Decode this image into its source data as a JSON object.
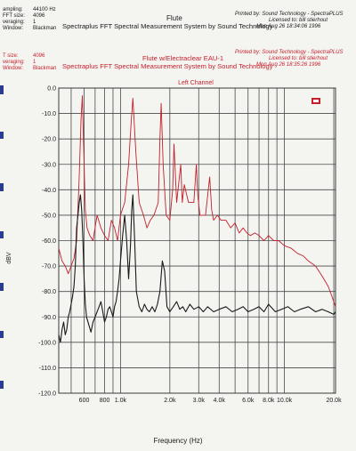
{
  "header_black": {
    "sampling_label": "ampling:",
    "sampling_value": "44100 Hz",
    "fft_label": "FFT size:",
    "fft_value": "4096",
    "averaging_label": "veraging:",
    "averaging_value": "1",
    "window_label": "Window:",
    "window_value": "Blackman",
    "subtitle": "Flute",
    "title": "Spectraplus FFT Spectral Measurement System by Sound Technology",
    "printed": "Printed by: Sound Technology - SpectraPLUS",
    "licensed": "Licensed to: bill stierhout",
    "date": "Mon Aug 26 18:34:06 1996"
  },
  "header_red": {
    "fft_label": "T size:",
    "fft_value": "4096",
    "averaging_label": "veraging:",
    "averaging_value": "1",
    "window_label": "Window:",
    "window_value": "Blackman",
    "subtitle": "Flute w/Electraclear EAU-1",
    "title": "Spectraplus FFT Spectral Measurement System by Sound Technology",
    "printed": "Printed by: Sound Technology - SpectraPLUS",
    "licensed": "Licensed to: bill stierhout",
    "date": "Mon Aug 26 18:35:26 1996"
  },
  "chart_data": {
    "type": "line",
    "title": "Left Channel",
    "xlabel": "Frequency (Hz)",
    "ylabel": "dBV",
    "xscale": "log",
    "xlim": [
      420,
      20500
    ],
    "ylim": [
      -120,
      0
    ],
    "grid": true,
    "y_ticks": [
      0,
      -10,
      -20,
      -30,
      -40,
      -50,
      -60,
      -70,
      -80,
      -90,
      -100,
      -110,
      -120
    ],
    "y_tick_labels": [
      "0.0",
      "-10.0",
      "-20.0",
      "-30.0",
      "-40.0",
      "-50.0",
      "-60.0",
      "-70.0",
      "-80.0",
      "-90.0",
      "-100.0",
      "-110.0",
      "-120.0"
    ],
    "x_ticks": [
      600,
      800,
      1000,
      2000,
      3000,
      4000,
      6000,
      8000,
      10000,
      20000
    ],
    "x_tick_labels": [
      "600",
      "800",
      "1.0k",
      "2.0k",
      "3.0k",
      "4.0k",
      "6.0k",
      "8.0k",
      "10.0k",
      "20.0k"
    ],
    "series": [
      {
        "color": "#c41f2a",
        "x": [
          420,
          440,
          460,
          480,
          500,
          520,
          540,
          560,
          575,
          585,
          595,
          610,
          625,
          650,
          680,
          720,
          760,
          800,
          840,
          880,
          920,
          960,
          1000,
          1060,
          1120,
          1160,
          1190,
          1240,
          1300,
          1380,
          1450,
          1520,
          1600,
          1700,
          1740,
          1770,
          1820,
          1900,
          2000,
          2080,
          2120,
          2200,
          2330,
          2380,
          2450,
          2600,
          2800,
          2900,
          2960,
          3050,
          3300,
          3500,
          3600,
          3700,
          3900,
          4100,
          4400,
          4700,
          5000,
          5300,
          5600,
          5900,
          6200,
          6600,
          7000,
          7500,
          8000,
          8600,
          9200,
          10000,
          11000,
          12000,
          13000,
          14000,
          15500,
          17000,
          18500,
          19500,
          20500
        ],
        "y": [
          -63,
          -68,
          -70,
          -73,
          -70,
          -67,
          -60,
          -35,
          -12,
          -3,
          -22,
          -48,
          -55,
          -58,
          -60,
          -50,
          -55,
          -58,
          -60,
          -52,
          -55,
          -60,
          -50,
          -45,
          -30,
          -14,
          -4,
          -25,
          -45,
          -50,
          -55,
          -52,
          -50,
          -45,
          -20,
          -6,
          -30,
          -50,
          -52,
          -40,
          -22,
          -45,
          -30,
          -45,
          -38,
          -45,
          -45,
          -30,
          -42,
          -50,
          -50,
          -35,
          -48,
          -52,
          -50,
          -52,
          -52,
          -55,
          -53,
          -57,
          -55,
          -57,
          -58,
          -57,
          -58,
          -60,
          -58,
          -60,
          -60,
          -62,
          -63,
          -65,
          -66,
          -68,
          -70,
          -74,
          -78,
          -82,
          -86
        ]
      },
      {
        "color": "#1a1a1a",
        "x": [
          420,
          430,
          440,
          450,
          460,
          470,
          480,
          490,
          500,
          510,
          520,
          530,
          540,
          550,
          560,
          570,
          580,
          590,
          600,
          610,
          620,
          640,
          660,
          680,
          700,
          720,
          740,
          760,
          780,
          800,
          820,
          840,
          860,
          880,
          900,
          920,
          940,
          960,
          980,
          1000,
          1030,
          1060,
          1090,
          1120,
          1150,
          1170,
          1190,
          1220,
          1250,
          1300,
          1350,
          1400,
          1450,
          1500,
          1560,
          1620,
          1680,
          1740,
          1800,
          1860,
          1920,
          2000,
          2100,
          2200,
          2300,
          2400,
          2500,
          2650,
          2800,
          3000,
          3200,
          3400,
          3700,
          4000,
          4400,
          4800,
          5200,
          5600,
          6000,
          6500,
          7000,
          7500,
          8000,
          8800,
          9600,
          10500,
          11500,
          12500,
          14000,
          15500,
          17000,
          18500,
          20000,
          20500
        ],
        "y": [
          -97,
          -100,
          -95,
          -92,
          -97,
          -95,
          -90,
          -88,
          -85,
          -82,
          -78,
          -70,
          -55,
          -50,
          -45,
          -42,
          -48,
          -60,
          -75,
          -85,
          -90,
          -93,
          -96,
          -92,
          -90,
          -88,
          -86,
          -84,
          -88,
          -92,
          -90,
          -87,
          -86,
          -88,
          -90,
          -86,
          -84,
          -80,
          -75,
          -68,
          -58,
          -50,
          -60,
          -75,
          -62,
          -48,
          -42,
          -60,
          -80,
          -86,
          -88,
          -85,
          -87,
          -88,
          -86,
          -88,
          -85,
          -80,
          -68,
          -72,
          -86,
          -88,
          -86,
          -84,
          -87,
          -86,
          -88,
          -85,
          -87,
          -86,
          -88,
          -86,
          -88,
          -87,
          -86,
          -88,
          -87,
          -86,
          -88,
          -87,
          -86,
          -88,
          -85,
          -88,
          -87,
          -86,
          -88,
          -87,
          -86,
          -88,
          -87,
          -88,
          -89,
          -88
        ]
      }
    ]
  }
}
